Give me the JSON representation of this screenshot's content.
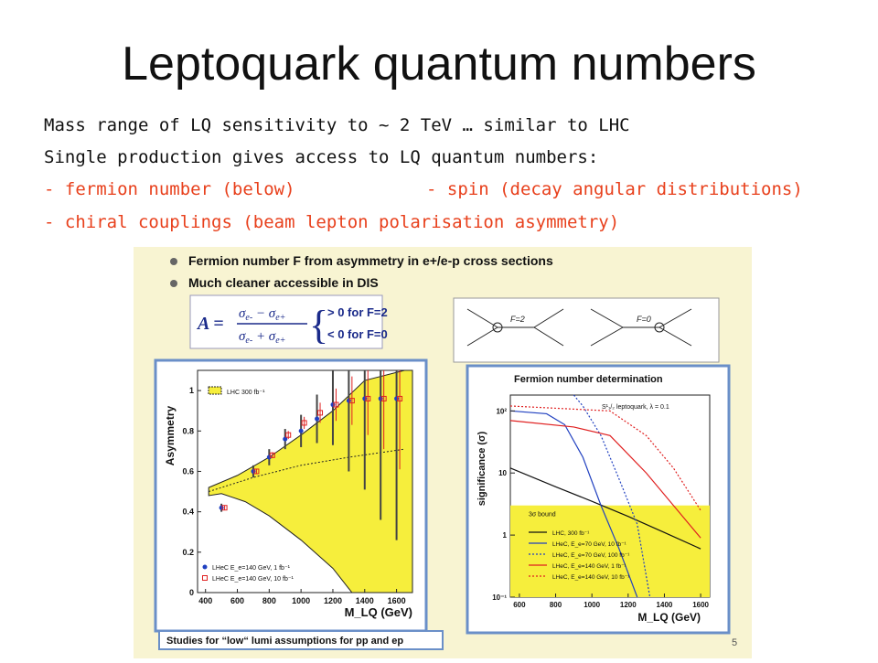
{
  "slide": {
    "title": "Leptoquark quantum numbers",
    "lines": [
      "Mass range of LQ sensitivity to ~ 2 TeV … similar to LHC",
      "Single production gives access to LQ quantum numbers:",
      "- fermion number (below)",
      "- spin (decay angular distributions)",
      "- chiral couplings (beam lepton polarisation asymmetry)"
    ]
  },
  "panel": {
    "bullets": [
      "Fermion number F from asymmetry in e+/e-p cross sections",
      "Much cleaner accessible in DIS"
    ],
    "formula": {
      "lhs": "A =",
      "top_cond": "> 0 for F=2",
      "bottom_cond": "< 0 for F=0"
    },
    "feynman": {
      "label_left": "F=2",
      "label_right": "F=0"
    },
    "footer": "Studies for “low“ lumi assumptions for pp and ep",
    "page": "5"
  },
  "chart_data": [
    {
      "type": "scatter",
      "ylabel": "Asymmetry",
      "xlabel": "M_LQ (GeV)",
      "xlim": [
        350,
        1700
      ],
      "ylim": [
        0,
        1.1
      ],
      "xticks": [
        400,
        600,
        800,
        1000,
        1200,
        1400,
        1600
      ],
      "yticks": [
        0,
        0.2,
        0.4,
        0.6,
        0.8,
        1
      ],
      "band_label": "LHC 300 fb⁻¹",
      "band_upper": [
        [
          420,
          0.52
        ],
        [
          600,
          0.58
        ],
        [
          800,
          0.67
        ],
        [
          1000,
          0.78
        ],
        [
          1200,
          0.9
        ],
        [
          1400,
          1.05
        ],
        [
          1650,
          1.2
        ]
      ],
      "band_lower": [
        [
          420,
          0.48
        ],
        [
          500,
          0.49
        ],
        [
          650,
          0.45
        ],
        [
          800,
          0.38
        ],
        [
          1000,
          0.26
        ],
        [
          1200,
          0.12
        ],
        [
          1320,
          0.0
        ]
      ],
      "dashed": [
        [
          420,
          0.5
        ],
        [
          700,
          0.57
        ],
        [
          1000,
          0.63
        ],
        [
          1300,
          0.67
        ],
        [
          1650,
          0.71
        ]
      ],
      "series": [
        {
          "name": "LHeC E_e=140 GeV, 1 fb⁻¹",
          "marker": "dot",
          "color": "#2040c0",
          "points": [
            [
              500,
              0.42,
              0.02
            ],
            [
              700,
              0.6,
              0.03
            ],
            [
              800,
              0.67,
              0.04
            ],
            [
              900,
              0.76,
              0.05
            ],
            [
              1000,
              0.8,
              0.08
            ],
            [
              1100,
              0.86,
              0.12
            ],
            [
              1200,
              0.93,
              0.2
            ],
            [
              1300,
              0.95,
              0.35
            ],
            [
              1400,
              0.96,
              0.45
            ],
            [
              1500,
              0.96,
              0.6
            ],
            [
              1600,
              0.96,
              0.7
            ]
          ]
        },
        {
          "name": "LHeC E_e=140 GeV, 10 fb⁻¹",
          "marker": "square",
          "color": "#e02020",
          "points": [
            [
              520,
              0.42,
              0.01
            ],
            [
              720,
              0.6,
              0.01
            ],
            [
              820,
              0.68,
              0.015
            ],
            [
              920,
              0.78,
              0.02
            ],
            [
              1020,
              0.84,
              0.03
            ],
            [
              1120,
              0.89,
              0.05
            ],
            [
              1220,
              0.93,
              0.08
            ],
            [
              1320,
              0.95,
              0.12
            ],
            [
              1420,
              0.96,
              0.18
            ],
            [
              1520,
              0.96,
              0.25
            ],
            [
              1620,
              0.96,
              0.35
            ]
          ]
        }
      ]
    },
    {
      "type": "line",
      "title": "Fermion number determination",
      "ylabel": "significance (σ)",
      "xlabel": "M_LQ (GeV)",
      "xlim": [
        550,
        1650
      ],
      "ylim": [
        0.1,
        180
      ],
      "log_y": true,
      "xticks": [
        600,
        800,
        1000,
        1200,
        1400,
        1600
      ],
      "yticks": [
        "10⁻¹",
        "1",
        "10",
        "10²"
      ],
      "annotation": "S¹₁/₂ leptoquark, λ = 0.1",
      "bound_label": "3σ bound",
      "bound_value": 3,
      "series": [
        {
          "name": "LHC, 300 fb⁻¹",
          "color": "#111111",
          "dash": false,
          "points": [
            [
              550,
              12
            ],
            [
              800,
              6
            ],
            [
              1000,
              3.5
            ],
            [
              1200,
              2
            ],
            [
              1400,
              1.1
            ],
            [
              1600,
              0.6
            ]
          ]
        },
        {
          "name": "LHeC, E_e=70 GeV, 10 fb⁻¹",
          "color": "#2040c0",
          "dash": false,
          "points": [
            [
              550,
              100
            ],
            [
              750,
              90
            ],
            [
              850,
              60
            ],
            [
              950,
              18
            ],
            [
              1050,
              3
            ],
            [
              1150,
              0.6
            ],
            [
              1250,
              0.1
            ]
          ]
        },
        {
          "name": "LHeC, E_e=70 GeV, 100 fb⁻¹",
          "color": "#2040c0",
          "dash": true,
          "points": [
            [
              900,
              180
            ],
            [
              950,
              120
            ],
            [
              1050,
              40
            ],
            [
              1150,
              8
            ],
            [
              1250,
              1.5
            ],
            [
              1320,
              0.1
            ]
          ]
        },
        {
          "name": "LHeC, E_e=140 GeV, 1 fb⁻¹",
          "color": "#e02020",
          "dash": false,
          "points": [
            [
              550,
              70
            ],
            [
              900,
              55
            ],
            [
              1100,
              40
            ],
            [
              1300,
              10
            ],
            [
              1450,
              3
            ],
            [
              1600,
              0.9
            ]
          ]
        },
        {
          "name": "LHeC, E_e=140 GeV, 10 fb⁻¹",
          "color": "#e02020",
          "dash": true,
          "points": [
            [
              550,
              120
            ],
            [
              1100,
              100
            ],
            [
              1300,
              40
            ],
            [
              1450,
              12
            ],
            [
              1600,
              2.5
            ]
          ]
        }
      ]
    }
  ]
}
